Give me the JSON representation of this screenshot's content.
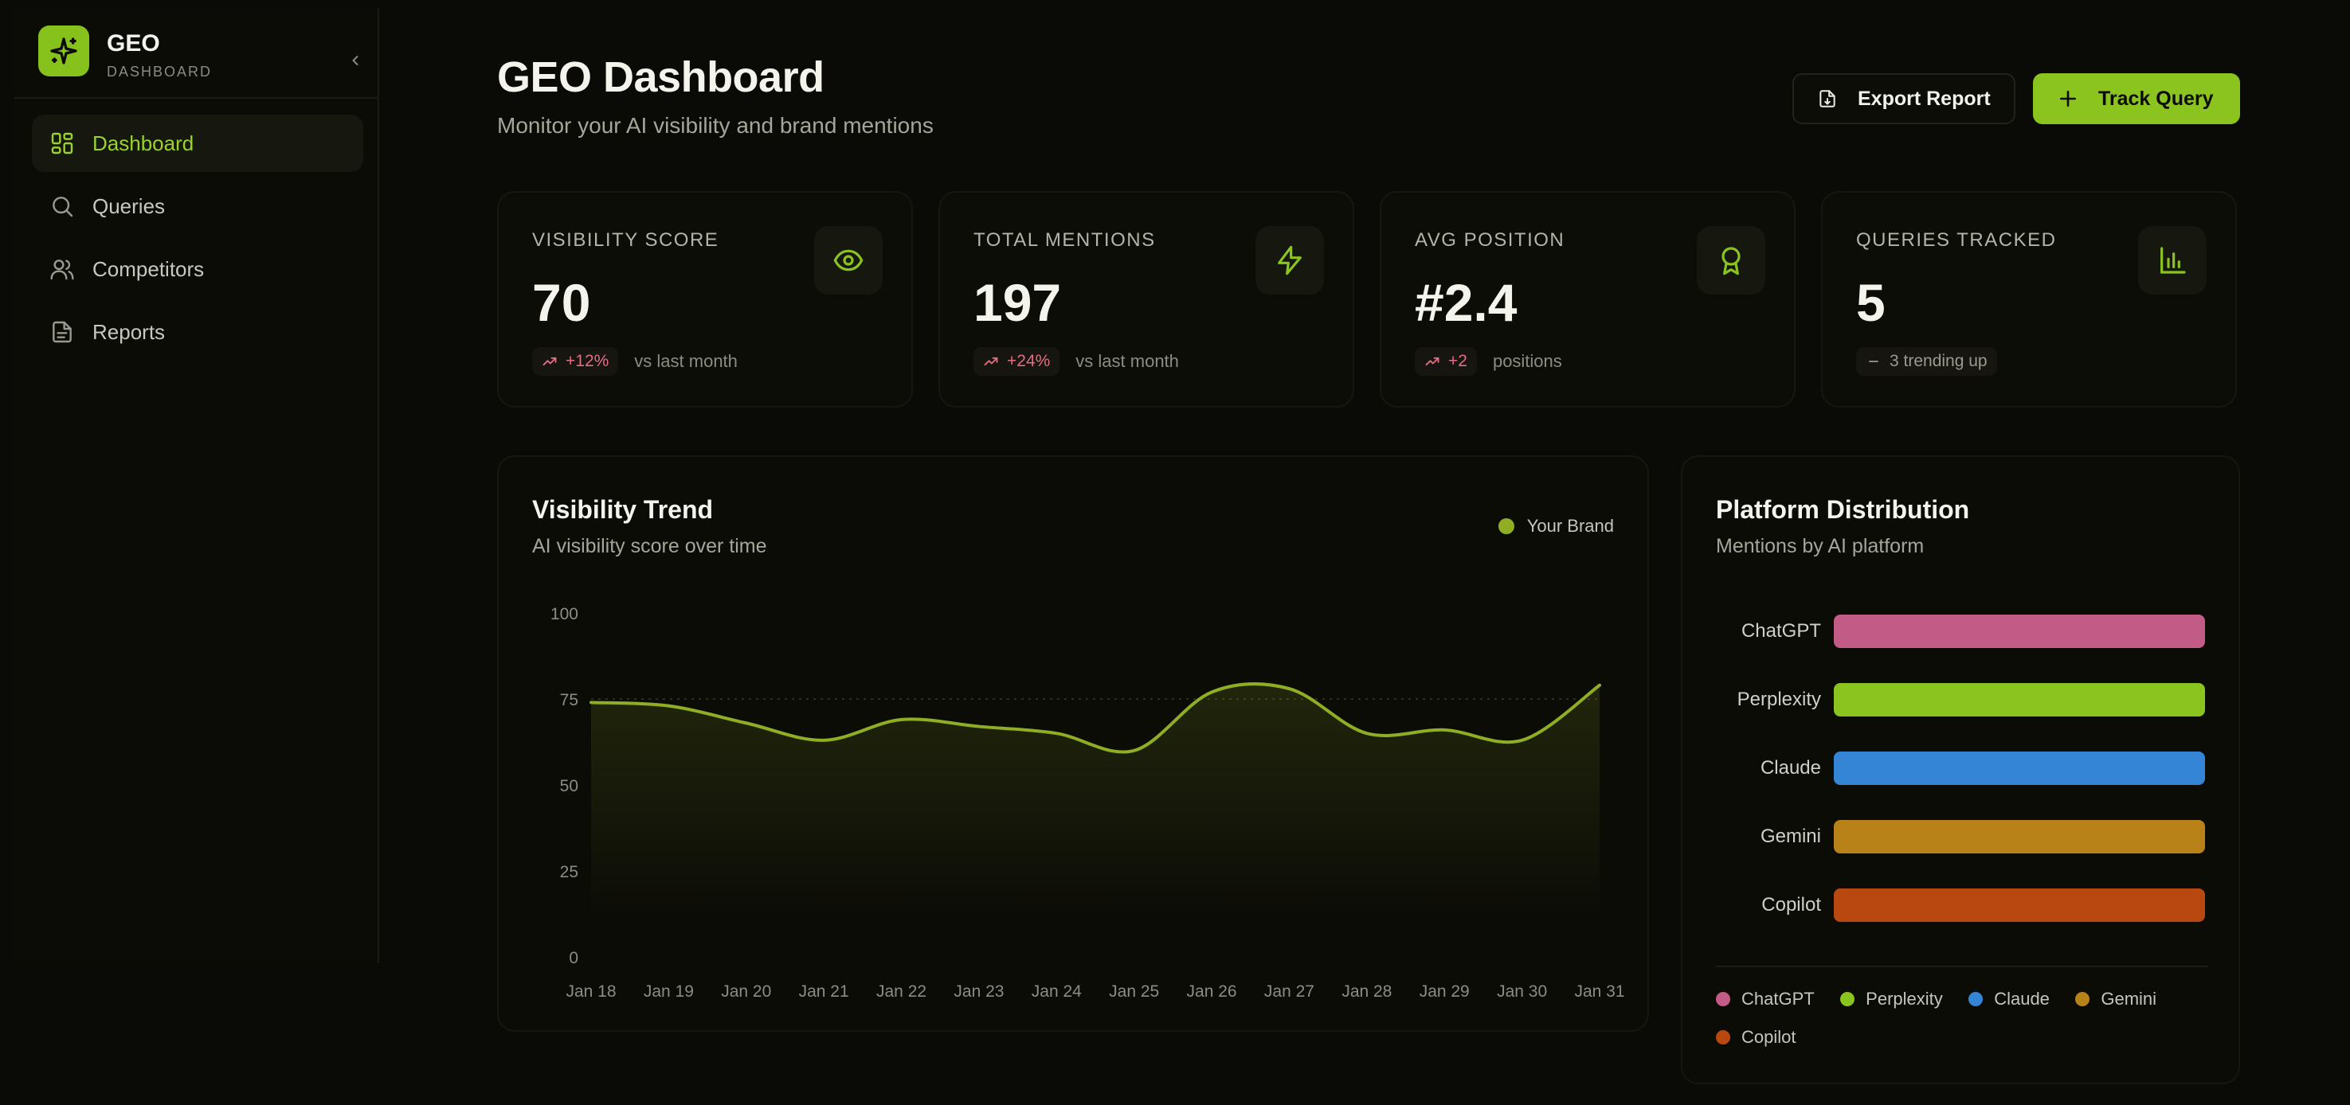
{
  "sidebar": {
    "brand_name": "GEO",
    "brand_sub": "DASHBOARD",
    "items": [
      {
        "label": "Dashboard",
        "icon": "grid-icon",
        "active": true
      },
      {
        "label": "Queries",
        "icon": "search-icon",
        "active": false
      },
      {
        "label": "Competitors",
        "icon": "users-icon",
        "active": false
      },
      {
        "label": "Reports",
        "icon": "file-icon",
        "active": false
      }
    ]
  },
  "header": {
    "title": "GEO Dashboard",
    "subtitle": "Monitor your AI visibility and brand mentions",
    "export_label": "Export Report",
    "track_label": "Track Query"
  },
  "stats": [
    {
      "label": "VISIBILITY SCORE",
      "value": "70",
      "badge": "+12%",
      "foot": "vs last month",
      "icon": "eye-icon",
      "trend": "up"
    },
    {
      "label": "TOTAL MENTIONS",
      "value": "197",
      "badge": "+24%",
      "foot": "vs last month",
      "icon": "bolt-icon",
      "trend": "up"
    },
    {
      "label": "AVG POSITION",
      "value": "#2.4",
      "badge": "+2",
      "foot": "positions",
      "icon": "award-icon",
      "trend": "up"
    },
    {
      "label": "QUERIES TRACKED",
      "value": "5",
      "badge": "3 trending up",
      "foot": "",
      "icon": "bar-chart-icon",
      "trend": "neutral"
    }
  ],
  "colors": {
    "accent": "#8bc41f",
    "line": "#8fae24",
    "badge_up": "#e46d83",
    "chatgpt": "#c25b86",
    "perplexity": "#8bc41f",
    "claude": "#3585d6",
    "gemini": "#b98218",
    "copilot": "#b8480f"
  },
  "chart_data": [
    {
      "type": "line",
      "title": "Visibility Trend",
      "subtitle": "AI visibility score over time",
      "legend": "top-right",
      "categories": [
        "Jan 18",
        "Jan 19",
        "Jan 20",
        "Jan 21",
        "Jan 22",
        "Jan 23",
        "Jan 24",
        "Jan 25",
        "Jan 26",
        "Jan 27",
        "Jan 28",
        "Jan 29",
        "Jan 30",
        "Jan 31"
      ],
      "yticks": [
        "100",
        "75",
        "50",
        "25",
        "0"
      ],
      "ylim": [
        0,
        100
      ],
      "grid": false,
      "series": [
        {
          "name": "Your Brand",
          "values": [
            74,
            73,
            68,
            63,
            69,
            67,
            65,
            60,
            77,
            78,
            65,
            66,
            63,
            79
          ]
        }
      ]
    },
    {
      "type": "bar",
      "orientation": "horizontal",
      "title": "Platform Distribution",
      "subtitle": "Mentions by AI platform",
      "categories": [
        "ChatGPT",
        "Perplexity",
        "Claude",
        "Gemini",
        "Copilot"
      ],
      "values": [
        100,
        100,
        100,
        100,
        100
      ],
      "legend": "bottom",
      "legend_items": [
        "ChatGPT",
        "Perplexity",
        "Claude",
        "Gemini",
        "Copilot"
      ]
    }
  ]
}
